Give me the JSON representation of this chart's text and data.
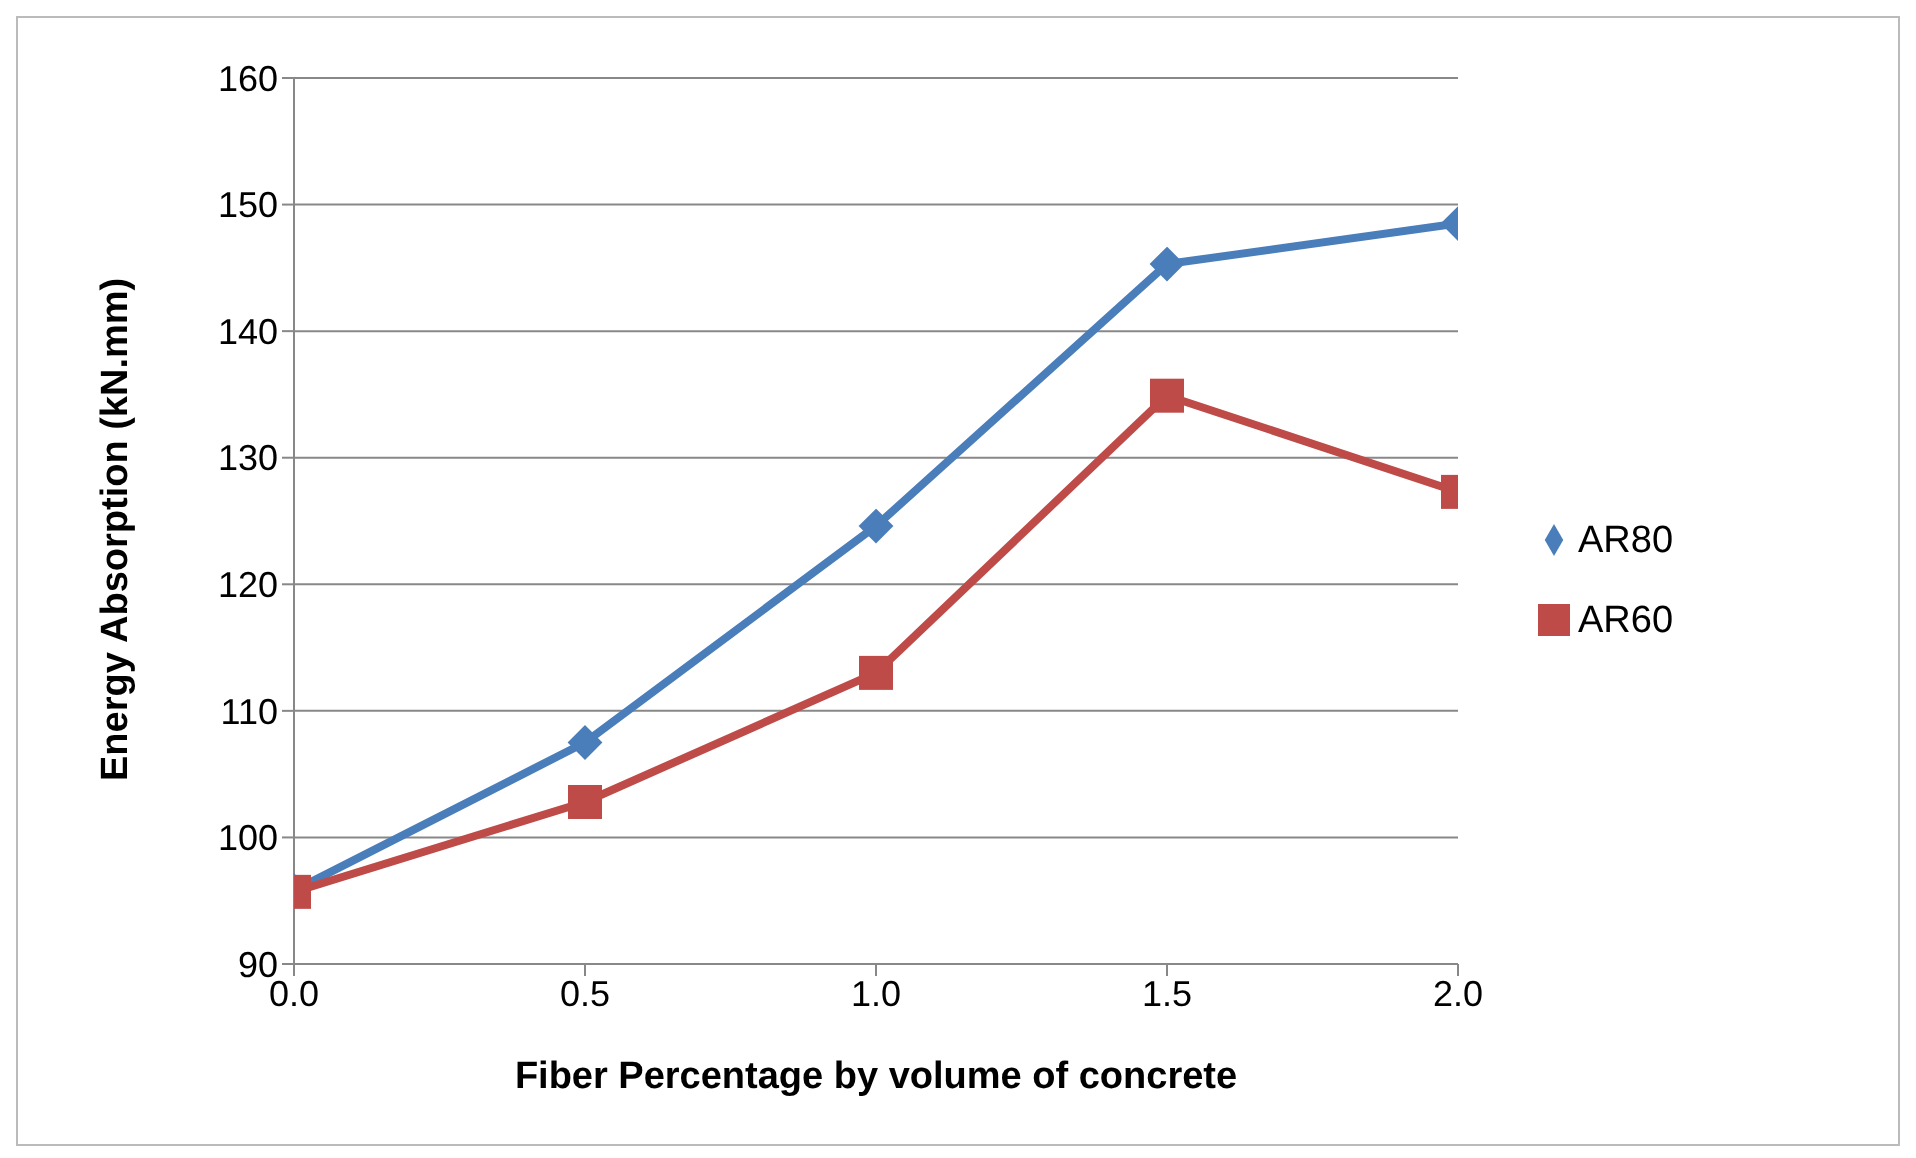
{
  "chart_data": {
    "type": "line",
    "xlabel": "Fiber Percentage by volume of concrete",
    "ylabel": "Energy Absorption (kN.mm)",
    "x": [
      0,
      0.5,
      1.0,
      1.5,
      2.0
    ],
    "series": [
      {
        "name": "AR80",
        "color": "#4a7ebb",
        "marker": "diamond",
        "values": [
          95.8,
          107.5,
          124.6,
          145.3,
          148.5
        ]
      },
      {
        "name": "AR60",
        "color": "#be4b48",
        "marker": "square",
        "values": [
          95.7,
          102.8,
          113.0,
          134.9,
          127.3
        ]
      }
    ],
    "xlim": [
      0,
      2
    ],
    "xticks": [
      {
        "value": 0,
        "label": "0.0"
      },
      {
        "value": 0.5,
        "label": "0.5"
      },
      {
        "value": 1,
        "label": "1.0"
      },
      {
        "value": 1.5,
        "label": "1.5"
      },
      {
        "value": 2,
        "label": "2.0"
      }
    ],
    "ylim": [
      90,
      160
    ],
    "yticks": [
      90,
      100,
      110,
      120,
      130,
      140,
      150,
      160
    ],
    "grid": "y",
    "legend": "right",
    "line_style": "solid"
  }
}
